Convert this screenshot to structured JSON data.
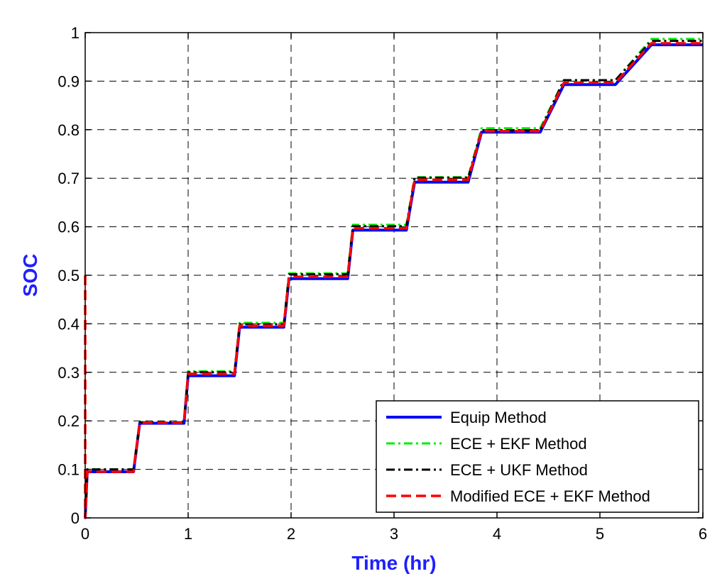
{
  "chart_data": {
    "type": "line",
    "title": "",
    "xlabel": "Time (hr)",
    "ylabel": "SOC",
    "label_color": "#1f1fff",
    "xlim": [
      0,
      6
    ],
    "ylim": [
      0,
      1
    ],
    "xticks": [
      "0",
      "1",
      "2",
      "3",
      "4",
      "5",
      "6"
    ],
    "yticks": [
      "0",
      "0.1",
      "0.2",
      "0.3",
      "0.4",
      "0.5",
      "0.6",
      "0.7",
      "0.8",
      "0.9",
      "1"
    ],
    "grid": true,
    "legend_position": "bottom-right",
    "series": [
      {
        "name": "Equip Method",
        "color": "#0000ff",
        "style": "solid",
        "x": [
          0,
          0.02,
          0.47,
          0.53,
          0.96,
          1.0,
          1.45,
          1.5,
          1.93,
          1.98,
          2.55,
          2.6,
          3.12,
          3.2,
          3.72,
          3.85,
          4.42,
          4.65,
          5.15,
          5.5,
          6.0
        ],
        "y": [
          0,
          0.095,
          0.095,
          0.195,
          0.195,
          0.293,
          0.293,
          0.393,
          0.393,
          0.493,
          0.493,
          0.593,
          0.593,
          0.692,
          0.692,
          0.795,
          0.795,
          0.893,
          0.893,
          0.975,
          0.975
        ]
      },
      {
        "name": "ECE + EKF Method",
        "color": "#00ee00",
        "style": "dashdot",
        "x": [
          0,
          0.02,
          0.47,
          0.53,
          0.96,
          1.0,
          1.45,
          1.5,
          1.93,
          1.98,
          2.55,
          2.6,
          3.12,
          3.2,
          3.72,
          3.85,
          4.42,
          4.65,
          5.15,
          5.5,
          6.0
        ],
        "y": [
          0,
          0.1,
          0.1,
          0.197,
          0.197,
          0.302,
          0.302,
          0.402,
          0.402,
          0.504,
          0.504,
          0.604,
          0.604,
          0.702,
          0.702,
          0.803,
          0.803,
          0.902,
          0.902,
          0.987,
          0.987
        ]
      },
      {
        "name": "ECE + UKF Method",
        "color": "#000000",
        "style": "dashdot",
        "x": [
          0,
          0.02,
          0.47,
          0.53,
          0.96,
          1.0,
          1.45,
          1.5,
          1.93,
          1.98,
          2.55,
          2.6,
          3.12,
          3.2,
          3.72,
          3.85,
          4.42,
          4.65,
          5.15,
          5.5,
          6.0
        ],
        "y": [
          0,
          0.1,
          0.1,
          0.197,
          0.197,
          0.3,
          0.3,
          0.399,
          0.399,
          0.502,
          0.502,
          0.601,
          0.601,
          0.701,
          0.701,
          0.799,
          0.799,
          0.902,
          0.902,
          0.983,
          0.983
        ]
      },
      {
        "name": "Modified ECE + EKF Method",
        "color": "#ff0000",
        "style": "dashed",
        "x": [
          0,
          0.0,
          0.02,
          0.47,
          0.53,
          0.96,
          1.0,
          1.45,
          1.5,
          1.93,
          1.98,
          2.55,
          2.6,
          3.12,
          3.2,
          3.72,
          3.85,
          4.42,
          4.65,
          5.15,
          5.5,
          6.0
        ],
        "y": [
          0.5,
          0.0,
          0.095,
          0.095,
          0.196,
          0.196,
          0.297,
          0.297,
          0.396,
          0.396,
          0.497,
          0.497,
          0.597,
          0.597,
          0.697,
          0.697,
          0.797,
          0.797,
          0.897,
          0.897,
          0.978,
          0.978
        ]
      }
    ]
  }
}
